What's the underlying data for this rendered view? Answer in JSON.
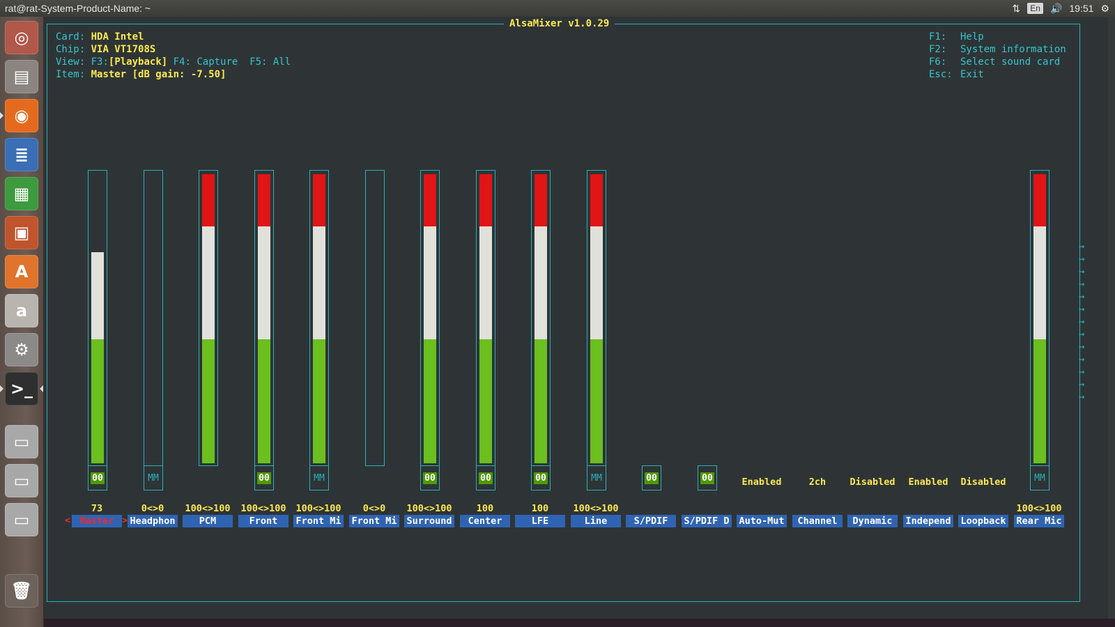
{
  "topbar": {
    "title": "rat@rat-System-Product-Name: ~",
    "lang": "En",
    "clock": "19:51"
  },
  "launcher": [
    {
      "name": "dash-home-icon",
      "glyph": "◎",
      "color": "#b0584a"
    },
    {
      "name": "files-icon",
      "glyph": "▤",
      "color": "#8a8580"
    },
    {
      "name": "firefox-icon",
      "glyph": "◉",
      "color": "#e66a1e"
    },
    {
      "name": "writer-icon",
      "glyph": "≣",
      "color": "#3a6fb5"
    },
    {
      "name": "calc-icon",
      "glyph": "▦",
      "color": "#3d9a3d"
    },
    {
      "name": "impress-icon",
      "glyph": "▣",
      "color": "#c0542c"
    },
    {
      "name": "software-center-icon",
      "glyph": "A",
      "color": "#e0742c"
    },
    {
      "name": "amazon-icon",
      "glyph": "a",
      "color": "#b8b4ae"
    },
    {
      "name": "system-settings-icon",
      "glyph": "⚙",
      "color": "#8c8a88"
    },
    {
      "name": "terminal-icon",
      "glyph": ">_",
      "color": "#2f2f2f"
    },
    {
      "name": "drive-icon",
      "glyph": "▭",
      "color": "#a8a8a8"
    },
    {
      "name": "drive-icon",
      "glyph": "▭",
      "color": "#a8a8a8"
    },
    {
      "name": "drive-icon",
      "glyph": "▭",
      "color": "#a8a8a8"
    },
    {
      "name": "trash-icon",
      "glyph": "🗑",
      "color": "#6d625c"
    }
  ],
  "mixer": {
    "title": "AlsaMixer v1.0.29",
    "card_label": "Card:",
    "card": "HDA Intel",
    "chip_label": "Chip:",
    "chip": "VIA VT1708S",
    "view_label": "View:",
    "view_f3": "F3:",
    "view_playback": "[Playback]",
    "view_rest": " F4: Capture  F5: All",
    "item_label": "Item:",
    "item": "Master [dB gain: -7.50]",
    "help": [
      {
        "key": "F1:",
        "text": "Help"
      },
      {
        "key": "F2:",
        "text": "System information"
      },
      {
        "key": "F6:",
        "text": "Select sound card"
      },
      {
        "key": "Esc:",
        "text": "Exit"
      }
    ],
    "controls": [
      {
        "name": "Master",
        "value": "73",
        "level": 0.73,
        "mute": "00",
        "mute_on": true,
        "selected": true,
        "slider": true
      },
      {
        "name": "Headphon",
        "value": "0<>0",
        "level": 0,
        "mute": "MM",
        "mute_on": false,
        "slider": true
      },
      {
        "name": "PCM",
        "value": "100<>100",
        "level": 1.0,
        "mute": "",
        "slider": true
      },
      {
        "name": "Front",
        "value": "100<>100",
        "level": 1.0,
        "mute": "00",
        "mute_on": true,
        "slider": true
      },
      {
        "name": "Front Mi",
        "value": "100<>100",
        "level": 1.0,
        "mute": "MM",
        "mute_on": false,
        "slider": true
      },
      {
        "name": "Front Mi",
        "value": "0<>0",
        "level": 0,
        "mute": "",
        "slider": true
      },
      {
        "name": "Surround",
        "value": "100<>100",
        "level": 1.0,
        "mute": "00",
        "mute_on": true,
        "slider": true
      },
      {
        "name": "Center",
        "value": "100",
        "level": 1.0,
        "mute": "00",
        "mute_on": true,
        "slider": true
      },
      {
        "name": "LFE",
        "value": "100",
        "level": 1.0,
        "mute": "00",
        "mute_on": true,
        "slider": true
      },
      {
        "name": "Line",
        "value": "100<>100",
        "level": 1.0,
        "mute": "MM",
        "mute_on": false,
        "slider": true
      },
      {
        "name": "S/PDIF",
        "value": "",
        "mute": "00",
        "mute_on": true,
        "slider": false
      },
      {
        "name": "S/PDIF D",
        "value": "",
        "mute": "00",
        "mute_on": true,
        "slider": false
      },
      {
        "name": "Auto-Mut",
        "enum": "Enabled",
        "slider": false
      },
      {
        "name": "Channel",
        "enum": "2ch",
        "slider": false
      },
      {
        "name": "Dynamic",
        "enum": "Disabled",
        "slider": false
      },
      {
        "name": "Independ",
        "enum": "Enabled",
        "slider": false
      },
      {
        "name": "Loopback",
        "enum": "Disabled",
        "slider": false
      },
      {
        "name": "Rear Mic",
        "value": "100<>100",
        "level": 1.0,
        "mute": "MM",
        "mute_on": false,
        "slider": true
      }
    ],
    "sel_left": "<",
    "sel_right": ">",
    "scroll_arrows": "→\n→\n→\n→\n→\n→\n→\n→\n→\n→\n→\n→\n→"
  }
}
